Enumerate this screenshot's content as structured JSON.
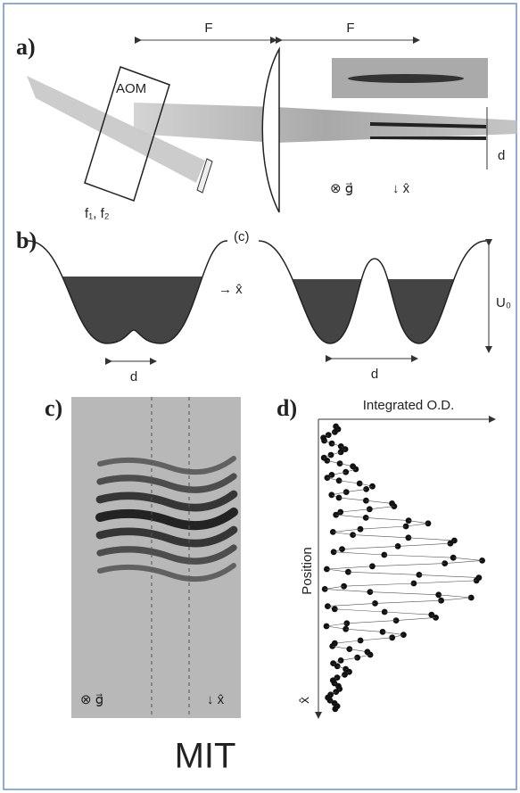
{
  "panels": {
    "a": {
      "label": "a)",
      "focal_left": "F",
      "focal_right": "F",
      "aom": "AOM",
      "frequencies": "f₁, f₂",
      "spacing": "d",
      "gravity": "⊗ g⃗",
      "axis": "↓ x̂"
    },
    "b": {
      "label": "b)",
      "inset": "(c)",
      "axis": "→ x̂",
      "spacing_left": "d",
      "spacing_right": "d",
      "depth": "U₀"
    },
    "c": {
      "label": "c)",
      "gravity": "⊗ g⃗",
      "axis": "↓ x̂"
    },
    "d": {
      "label": "d)",
      "x_label": "Integrated O.D.",
      "y_label": "Position",
      "axis": "x̂"
    }
  },
  "footer": "MIT"
}
